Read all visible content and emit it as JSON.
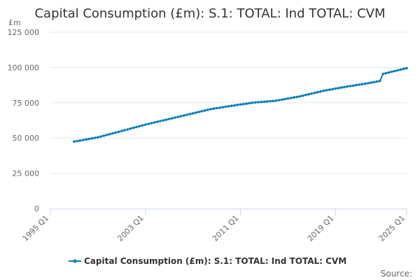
{
  "colors": {
    "series": "#0b7dbb",
    "grid": "#e6e6e6",
    "axis": "#ccd6eb",
    "text": "#333333",
    "muted": "#666666"
  },
  "chart_data": {
    "type": "line",
    "title": "Capital Consumption (£m): S.1: TOTAL: Ind TOTAL: CVM",
    "ylabel": "£m",
    "xlabel": "",
    "ylim": [
      0,
      125000
    ],
    "y_ticks": [
      {
        "value": 0,
        "label": "0"
      },
      {
        "value": 25000,
        "label": "25 000"
      },
      {
        "value": 50000,
        "label": "50 000"
      },
      {
        "value": 75000,
        "label": "75 000"
      },
      {
        "value": 100000,
        "label": "100 000"
      },
      {
        "value": 125000,
        "label": "125 000"
      }
    ],
    "x_range": [
      1995.0,
      2025.0
    ],
    "x_ticks": [
      {
        "value": 1995.0,
        "label": "1995 Q1"
      },
      {
        "value": 2003.0,
        "label": "2003 Q1"
      },
      {
        "value": 2011.0,
        "label": "2011 Q1"
      },
      {
        "value": 2019.0,
        "label": "2019 Q1"
      },
      {
        "value": 2025.0,
        "label": "2025 Q1"
      }
    ],
    "grid": true,
    "legend_position": "bottom-center",
    "series": [
      {
        "name": "Capital Consumption (£m): S.1: TOTAL: Ind TOTAL: CVM",
        "anchors": [
          {
            "year": 1997.0,
            "value": 47500
          },
          {
            "year": 1999.0,
            "value": 50500
          },
          {
            "year": 2001.0,
            "value": 55000
          },
          {
            "year": 2003.0,
            "value": 59500
          },
          {
            "year": 2005.0,
            "value": 63500
          },
          {
            "year": 2007.0,
            "value": 67500
          },
          {
            "year": 2008.5,
            "value": 70500
          },
          {
            "year": 2010.0,
            "value": 72500
          },
          {
            "year": 2012.0,
            "value": 75000
          },
          {
            "year": 2014.0,
            "value": 76500
          },
          {
            "year": 2016.0,
            "value": 79500
          },
          {
            "year": 2018.0,
            "value": 83500
          },
          {
            "year": 2020.0,
            "value": 86500
          },
          {
            "year": 2021.5,
            "value": 88500
          },
          {
            "year": 2022.5,
            "value": 90000
          },
          {
            "year": 2022.75,
            "value": 90500
          },
          {
            "year": 2023.0,
            "value": 95500
          },
          {
            "year": 2024.0,
            "value": 97500
          },
          {
            "year": 2025.0,
            "value": 99500
          }
        ]
      }
    ]
  },
  "footer": {
    "source_label": "Source:"
  }
}
